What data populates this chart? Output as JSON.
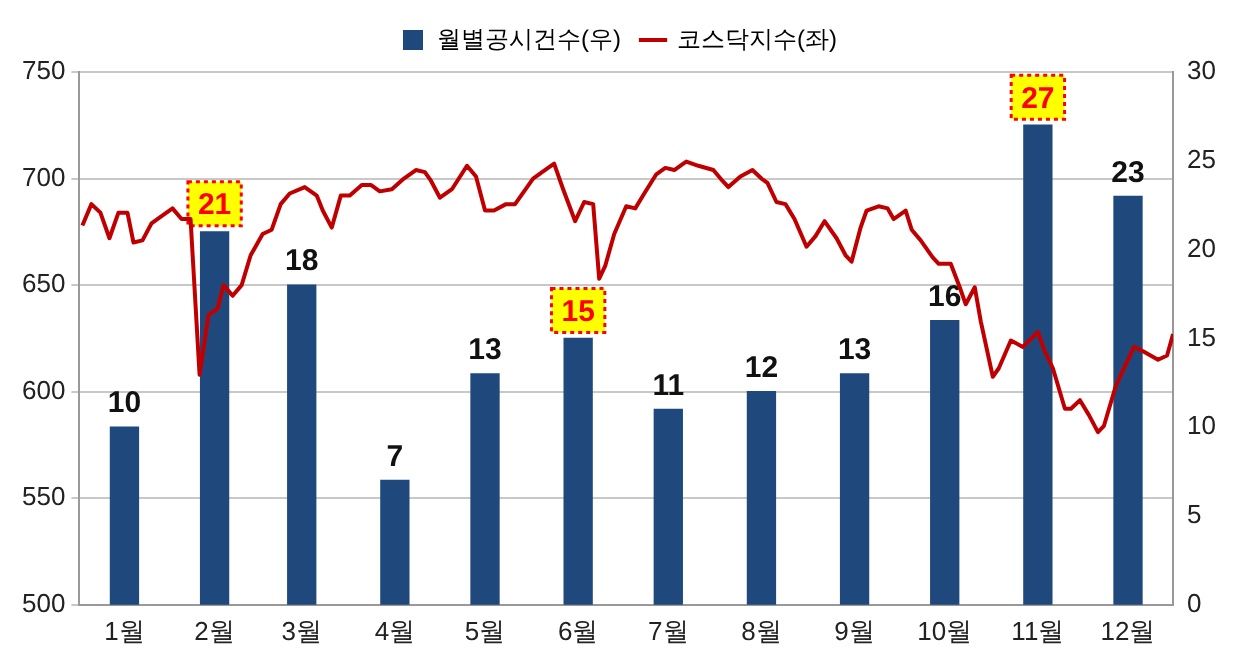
{
  "chart_data": {
    "type": "bar",
    "xlim": [
      "--01-01",
      "--12-31"
    ],
    "xticks": [
      {
        "value": "--01-16",
        "label": "1월"
      },
      {
        "value": "--02-15",
        "label": "2월"
      },
      {
        "value": "--03-16",
        "label": "3월"
      },
      {
        "value": "--04-16",
        "label": "4월"
      },
      {
        "value": "--05-16",
        "label": "5월"
      },
      {
        "value": "--06-16",
        "label": "6월"
      },
      {
        "value": "--07-16",
        "label": "7월"
      },
      {
        "value": "--08-16",
        "label": "8월"
      },
      {
        "value": "--09-16",
        "label": "9월"
      },
      {
        "value": "--10-16",
        "label": "10월"
      },
      {
        "value": "--11-16",
        "label": "11월"
      },
      {
        "value": "--12-16",
        "label": "12월"
      }
    ],
    "series": [
      {
        "name": "월별공시건수(우)",
        "color": "#1f497d",
        "axis": "y2",
        "x": [
          "--01-16",
          "--02-15",
          "--03-16",
          "--04-16",
          "--05-16",
          "--06-16",
          "--07-16",
          "--08-16",
          "--09-16",
          "--10-16",
          "--11-16",
          "--12-16"
        ],
        "values": [
          10,
          21,
          18,
          7,
          13,
          15,
          11,
          12,
          13,
          16,
          27,
          23
        ],
        "value_labels": [
          "10",
          null,
          "18",
          "7",
          "13",
          null,
          "11",
          "12",
          "13",
          "16",
          null,
          "23"
        ]
      },
      {
        "name": "코스닥지수(좌)",
        "type": "line",
        "color": "#c00000",
        "x": [
          "--01-02",
          "--01-05",
          "--01-08",
          "--01-11",
          "--01-14",
          "--01-17",
          "--01-19",
          "--01-22",
          "--01-25",
          "--01-28",
          "--02-01",
          "--02-04",
          "--02-07",
          "--02-10",
          "--02-13",
          "--02-16",
          "--02-18",
          "--02-21",
          "--02-24",
          "--02-27",
          "--03-03",
          "--03-06",
          "--03-09",
          "--03-12",
          "--03-17",
          "--03-21",
          "--03-23",
          "--03-26",
          "--03-29",
          "--04-01",
          "--04-05",
          "--04-08",
          "--04-11",
          "--04-15",
          "--04-19",
          "--04-23",
          "--04-26",
          "--04-28",
          "--05-01",
          "--05-05",
          "--05-10",
          "--05-13",
          "--05-16",
          "--05-19",
          "--05-23",
          "--05-26",
          "--05-29",
          "--06-01",
          "--06-04",
          "--06-08",
          "--06-11",
          "--06-15",
          "--06-18",
          "--06-21",
          "--06-23",
          "--06-25",
          "--06-28",
          "--07-02",
          "--07-05",
          "--07-08",
          "--07-12",
          "--07-15",
          "--07-18",
          "--07-21",
          "--07-22",
          "--07-26",
          "--07-31",
          "--08-03",
          "--08-05",
          "--08-09",
          "--08-13",
          "--08-16",
          "--08-18",
          "--08-21",
          "--08-24",
          "--08-27",
          "--08-31",
          "--09-03",
          "--09-06",
          "--09-10",
          "--09-13",
          "--09-15",
          "--09-18",
          "--09-20",
          "--09-24",
          "--09-27",
          "--09-29",
          "--10-03",
          "--10-05",
          "--10-08",
          "--10-12",
          "--10-14",
          "--10-18",
          "--10-21",
          "--10-23",
          "--10-26",
          "--10-28",
          "--11-01",
          "--11-03",
          "--11-07",
          "--11-11",
          "--11-16",
          "--11-18",
          "--11-21",
          "--11-25",
          "--11-27",
          "--11-30",
          "--12-03",
          "--12-06",
          "--12-08",
          "--12-12",
          "--12-15",
          "--12-18",
          "--12-21",
          "--12-26",
          "--12-29",
          "--12-31"
        ],
        "values": [
          678,
          688,
          684,
          672,
          684,
          684,
          670,
          671,
          679,
          682,
          686,
          681,
          681,
          608,
          636,
          639,
          650,
          645,
          650,
          664,
          674,
          676,
          688,
          693,
          696,
          692,
          685,
          677,
          692,
          692,
          697,
          697,
          694,
          695,
          700,
          704,
          703,
          699,
          691,
          695,
          706,
          701,
          685,
          685,
          688,
          688,
          694,
          700,
          703,
          707,
          695,
          680,
          689,
          688,
          653,
          659,
          674,
          687,
          686,
          693,
          702,
          705,
          704,
          707,
          708,
          706,
          704,
          699,
          696,
          701,
          704,
          700,
          698,
          689,
          688,
          681,
          668,
          673,
          680,
          672,
          664,
          661,
          677,
          685,
          687,
          686,
          681,
          685,
          676,
          671,
          663,
          660,
          660,
          649,
          641,
          649,
          633,
          607,
          611,
          624,
          621,
          628,
          620,
          611,
          592,
          592,
          596,
          589,
          581,
          584,
          603,
          612,
          621,
          619,
          615,
          617,
          627
        ]
      }
    ],
    "ylim": [
      500,
      750
    ],
    "yticks": [
      500,
      550,
      600,
      650,
      700,
      750
    ],
    "y2lim": [
      0,
      30
    ],
    "y2ticks": [
      0,
      5,
      10,
      15,
      20,
      25,
      30
    ],
    "grid": "y",
    "legend": "top",
    "marker": "none",
    "annotations": [
      "21",
      "15",
      "27"
    ]
  }
}
